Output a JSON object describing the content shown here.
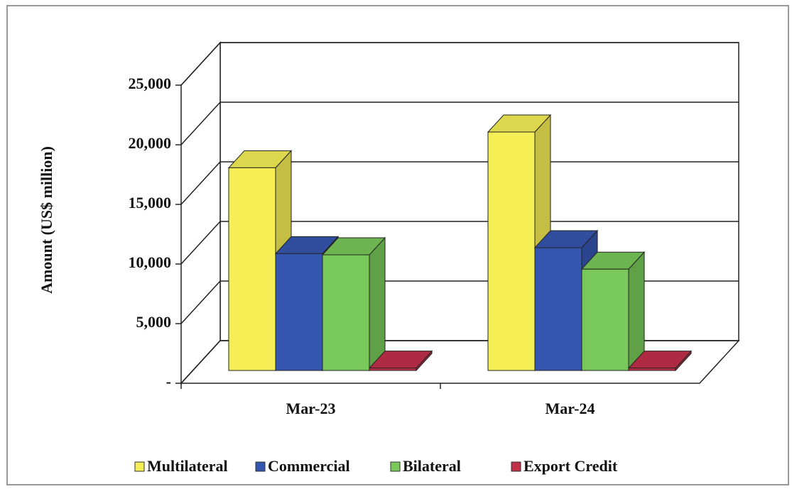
{
  "chart_data": {
    "type": "bar3d",
    "ylabel": "Amount (US$ million)",
    "categories": [
      "Mar-23",
      "Mar-24"
    ],
    "series": [
      {
        "name": "Multilateral",
        "color": "#f5ef55",
        "values": [
          17000,
          20000
        ]
      },
      {
        "name": "Commercial",
        "color": "#3556b0",
        "values": [
          9800,
          10300
        ]
      },
      {
        "name": "Bilateral",
        "color": "#78c95a",
        "values": [
          9700,
          8500
        ]
      },
      {
        "name": "Export Credit",
        "color": "#c2304a",
        "values": [
          200,
          200
        ]
      }
    ],
    "ylim": [
      0,
      25000
    ],
    "yticks": [
      {
        "value": 0,
        "label": "-"
      },
      {
        "value": 5000,
        "label": "5,000"
      },
      {
        "value": 10000,
        "label": "10,000"
      },
      {
        "value": 15000,
        "label": "15,000"
      },
      {
        "value": 20000,
        "label": "20,000"
      },
      {
        "value": 25000,
        "label": "25,000"
      }
    ],
    "grid": true,
    "legend": "bottom"
  }
}
